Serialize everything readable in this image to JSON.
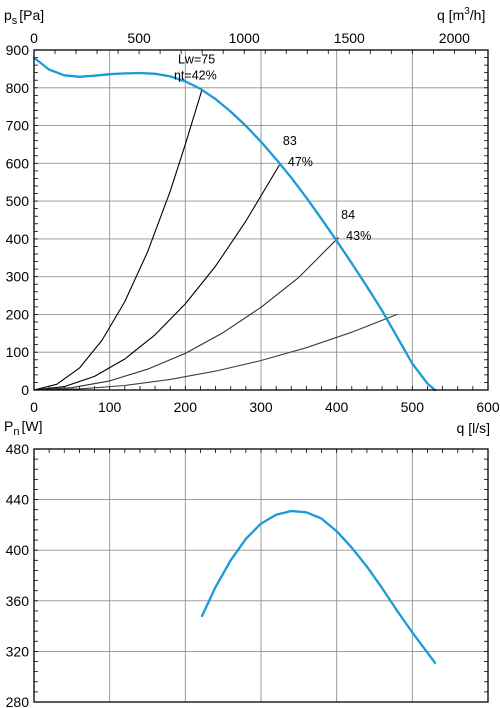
{
  "chart_data": [
    {
      "type": "line",
      "title": "",
      "ylabel": "p",
      "ylabel_sub": "s",
      "ylabel_unit": "[Pa]",
      "xlabel_bottom": "q [l/s]",
      "xlabel_top_prefix": "q [m",
      "xlabel_top_sup": "3",
      "xlabel_top_suffix": "/h]",
      "xlim": [
        0,
        600
      ],
      "ylim": [
        0,
        900
      ],
      "x_ticks": [
        "0",
        "100",
        "200",
        "300",
        "400",
        "500",
        "600"
      ],
      "x_tick_values": [
        0,
        100,
        200,
        300,
        400,
        500,
        600
      ],
      "y_ticks": [
        "0",
        "100",
        "200",
        "300",
        "400",
        "500",
        "600",
        "700",
        "800",
        "900"
      ],
      "y_tick_values": [
        0,
        100,
        200,
        300,
        400,
        500,
        600,
        700,
        800,
        900
      ],
      "top_ticks": [
        "0",
        "500",
        "1000",
        "1500",
        "2000"
      ],
      "top_tick_values_m3h": [
        0,
        500,
        1000,
        1500,
        2000
      ],
      "grid": true,
      "series": [
        {
          "role": "fan-curve",
          "color": "#1a9ad6",
          "x": [
            0,
            20,
            40,
            60,
            80,
            100,
            120,
            140,
            160,
            180,
            200,
            220,
            240,
            260,
            280,
            300,
            320,
            340,
            360,
            380,
            400,
            420,
            440,
            460,
            480,
            500,
            520,
            530
          ],
          "y": [
            880,
            848,
            833,
            829,
            832,
            836,
            838,
            839,
            837,
            830,
            817,
            797,
            770,
            737,
            699,
            657,
            611,
            562,
            509,
            453,
            395,
            335,
            274,
            210,
            140,
            70,
            17,
            0
          ]
        },
        {
          "role": "system-curve",
          "color": "#000000",
          "x": [
            0,
            30,
            60,
            90,
            120,
            150,
            180,
            200,
            222
          ],
          "y": [
            0,
            15,
            58,
            132,
            234,
            365,
            526,
            650,
            795
          ]
        },
        {
          "role": "system-curve",
          "color": "#000000",
          "x": [
            0,
            40,
            80,
            120,
            160,
            200,
            240,
            280,
            325
          ],
          "y": [
            0,
            9,
            36,
            82,
            146,
            228,
            328,
            447,
            598
          ]
        },
        {
          "role": "system-curve",
          "color": "#303030",
          "x": [
            0,
            50,
            100,
            150,
            200,
            250,
            300,
            350,
            402
          ],
          "y": [
            0,
            6,
            24,
            55,
            97,
            152,
            219,
            298,
            403
          ]
        },
        {
          "role": "system-curve",
          "color": "#404040",
          "x": [
            0,
            60,
            120,
            180,
            240,
            300,
            360,
            420,
            480
          ],
          "y": [
            0,
            3,
            12,
            28,
            50,
            78,
            112,
            153,
            200
          ]
        }
      ],
      "annotations": [
        {
          "id": "a1",
          "line1": "Lw=75",
          "line2": "ηt=42%",
          "x": 222,
          "y": 795
        },
        {
          "id": "a2",
          "line1": "83",
          "line2": "47%",
          "x": 325,
          "y": 598
        },
        {
          "id": "a3",
          "line1": "84",
          "line2": "43%",
          "x": 402,
          "y": 403
        }
      ]
    },
    {
      "type": "line",
      "title": "",
      "ylabel": "P",
      "ylabel_sub": "n",
      "ylabel_unit": "[W]",
      "xlabel": "",
      "xlim": [
        0,
        600
      ],
      "ylim": [
        280,
        480
      ],
      "y_ticks": [
        "280",
        "320",
        "360",
        "400",
        "440",
        "480"
      ],
      "y_tick_values": [
        280,
        320,
        360,
        400,
        440,
        480
      ],
      "grid": true,
      "series": [
        {
          "role": "power-curve",
          "color": "#1a9ad6",
          "x": [
            222,
            240,
            260,
            280,
            300,
            320,
            340,
            360,
            380,
            400,
            420,
            440,
            460,
            480,
            500,
            530
          ],
          "y": [
            348,
            371,
            392,
            409,
            421,
            428,
            431,
            430,
            425,
            415,
            402,
            387,
            370,
            352,
            335,
            311
          ]
        }
      ]
    }
  ]
}
